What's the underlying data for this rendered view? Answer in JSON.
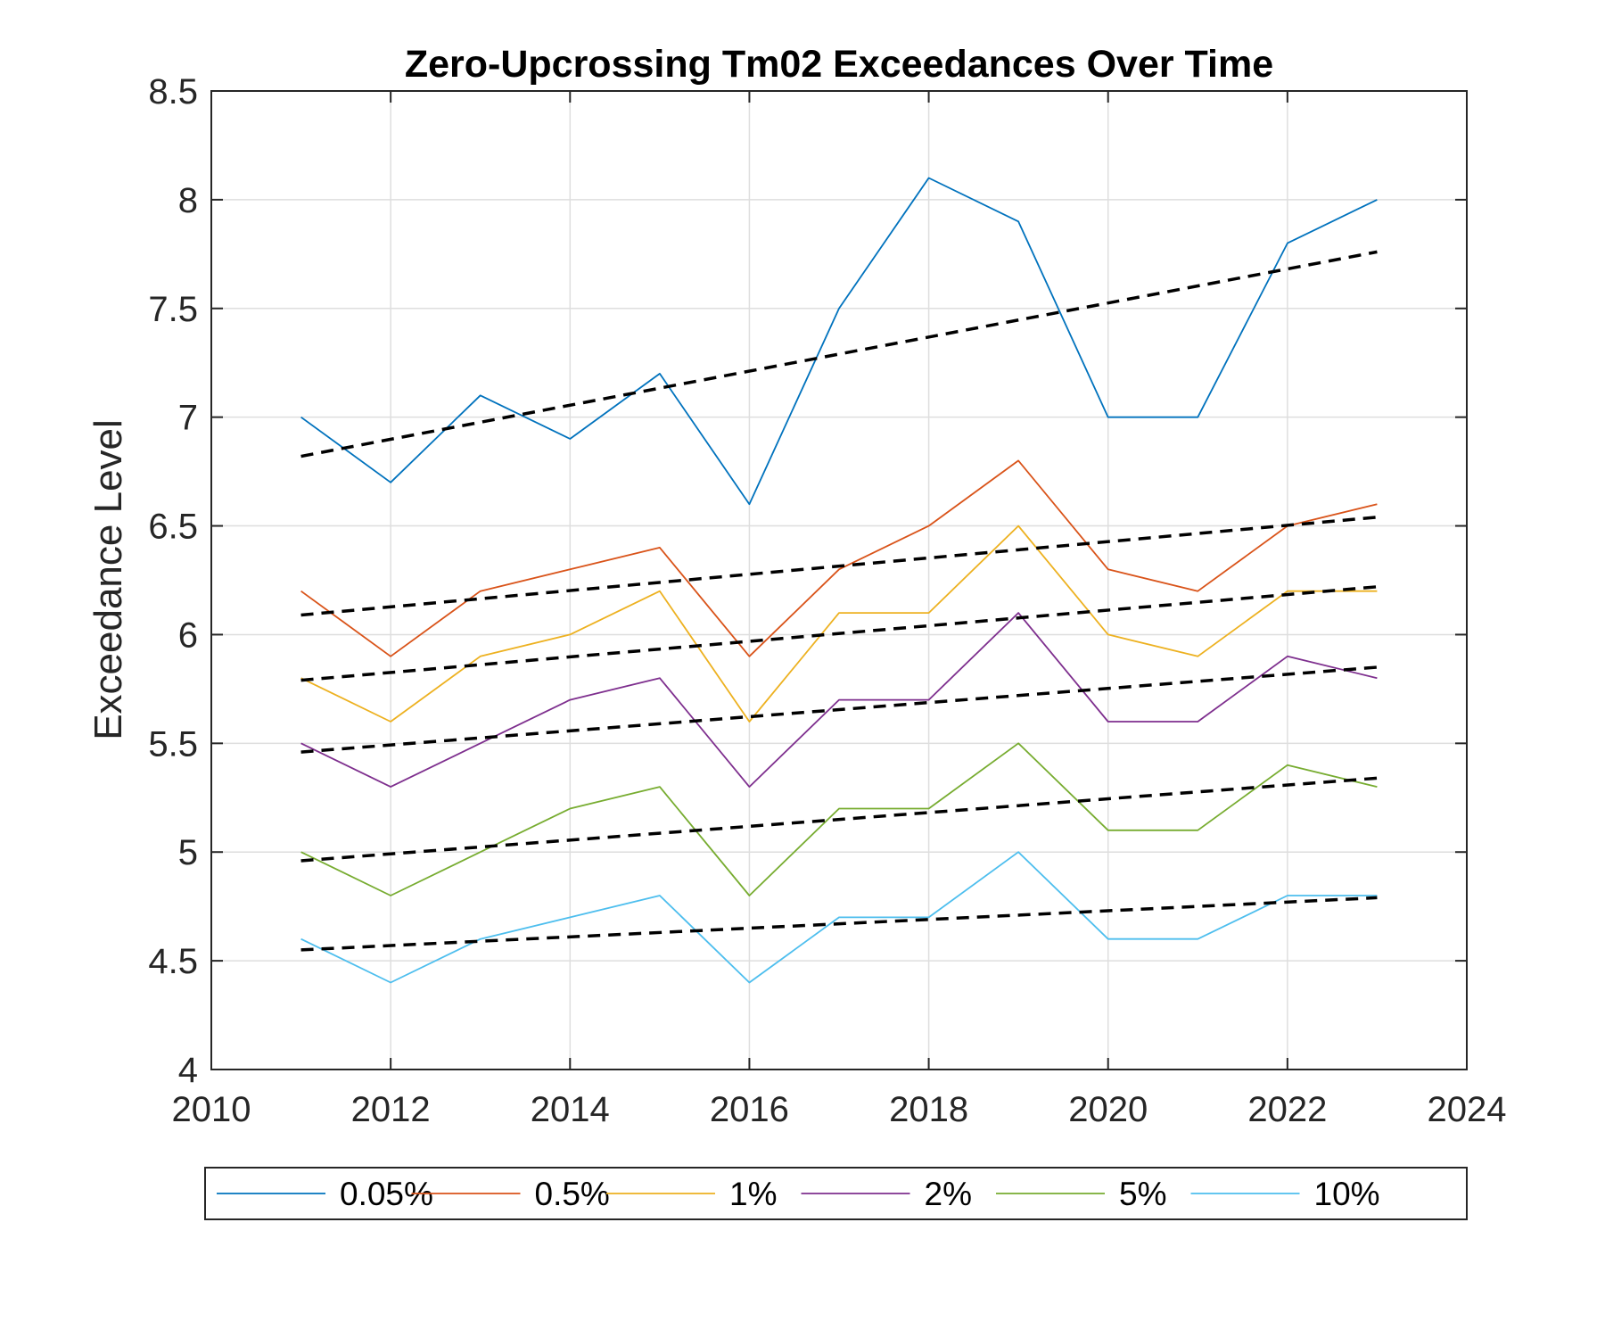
{
  "chart_data": {
    "type": "line",
    "title": "Zero-Upcrossing Tm02 Exceedances Over Time",
    "xlabel": "",
    "ylabel": "Exceedance Level",
    "xlim": [
      2010,
      2024
    ],
    "ylim": [
      4,
      8.5
    ],
    "xticks": [
      2010,
      2012,
      2014,
      2016,
      2018,
      2020,
      2022,
      2024
    ],
    "xtick_labels": [
      "2010",
      "2012",
      "2014",
      "2016",
      "2018",
      "2020",
      "2022",
      "2024"
    ],
    "yticks": [
      4,
      4.5,
      5,
      5.5,
      6,
      6.5,
      7,
      7.5,
      8,
      8.5
    ],
    "ytick_labels": [
      "4",
      "4.5",
      "5",
      "5.5",
      "6",
      "6.5",
      "7",
      "7.5",
      "8",
      "8.5"
    ],
    "grid": true,
    "legend_position": "bottom-outside",
    "x": [
      2011,
      2012,
      2013,
      2014,
      2015,
      2016,
      2017,
      2018,
      2019,
      2020,
      2021,
      2022,
      2023
    ],
    "series": [
      {
        "name": "0.05%",
        "color": "#0072BD",
        "values": [
          7.0,
          6.7,
          7.1,
          6.9,
          7.2,
          6.6,
          7.5,
          8.1,
          7.9,
          7.0,
          7.0,
          7.8,
          8.0
        ],
        "trend": [
          6.82,
          7.76
        ]
      },
      {
        "name": "0.5%",
        "color": "#D95319",
        "values": [
          6.2,
          5.9,
          6.2,
          6.3,
          6.4,
          5.9,
          6.3,
          6.5,
          6.8,
          6.3,
          6.2,
          6.5,
          6.6
        ],
        "trend": [
          6.09,
          6.54
        ]
      },
      {
        "name": "1%",
        "color": "#EDB120",
        "values": [
          5.8,
          5.6,
          5.9,
          6.0,
          6.2,
          5.6,
          6.1,
          6.1,
          6.5,
          6.0,
          5.9,
          6.2,
          6.2
        ],
        "trend": [
          5.79,
          6.22
        ]
      },
      {
        "name": "2%",
        "color": "#7E2F8E",
        "values": [
          5.5,
          5.3,
          5.5,
          5.7,
          5.8,
          5.3,
          5.7,
          5.7,
          6.1,
          5.6,
          5.6,
          5.9,
          5.8
        ],
        "trend": [
          5.46,
          5.85
        ]
      },
      {
        "name": "5%",
        "color": "#77AC30",
        "values": [
          5.0,
          4.8,
          5.0,
          5.2,
          5.3,
          4.8,
          5.2,
          5.2,
          5.5,
          5.1,
          5.1,
          5.4,
          5.3
        ],
        "trend": [
          4.96,
          5.34
        ]
      },
      {
        "name": "10%",
        "color": "#4DBEEE",
        "values": [
          4.6,
          4.4,
          4.6,
          4.7,
          4.8,
          4.4,
          4.7,
          4.7,
          5.0,
          4.6,
          4.6,
          4.8,
          4.8
        ],
        "trend": [
          4.55,
          4.79
        ]
      }
    ],
    "trend_color": "#000000"
  }
}
